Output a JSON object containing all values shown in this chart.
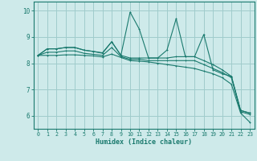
{
  "title": "",
  "xlabel": "Humidex (Indice chaleur)",
  "bg_color": "#ceeaea",
  "grid_color": "#a0cccc",
  "line_color": "#1a7a6e",
  "xlim": [
    -0.5,
    23.5
  ],
  "ylim": [
    5.5,
    10.35
  ],
  "yticks": [
    6,
    7,
    8,
    9,
    10
  ],
  "xticks": [
    0,
    1,
    2,
    3,
    4,
    5,
    6,
    7,
    8,
    9,
    10,
    11,
    12,
    13,
    14,
    15,
    16,
    17,
    18,
    19,
    20,
    21,
    22,
    23
  ],
  "series": [
    [
      8.3,
      8.55,
      8.55,
      8.6,
      8.6,
      8.5,
      8.45,
      8.4,
      8.82,
      8.3,
      9.95,
      9.3,
      8.2,
      8.2,
      8.5,
      9.7,
      8.25,
      8.25,
      9.1,
      7.75,
      7.6,
      7.5,
      6.2,
      6.1
    ],
    [
      8.3,
      8.55,
      8.55,
      8.6,
      8.6,
      8.5,
      8.45,
      8.38,
      8.82,
      8.3,
      8.2,
      8.2,
      8.2,
      8.2,
      8.2,
      8.25,
      8.25,
      8.25,
      8.1,
      7.95,
      7.75,
      7.5,
      6.2,
      6.1
    ],
    [
      8.3,
      8.42,
      8.42,
      8.47,
      8.47,
      8.38,
      8.34,
      8.3,
      8.6,
      8.25,
      8.15,
      8.15,
      8.1,
      8.1,
      8.1,
      8.1,
      8.1,
      8.1,
      7.95,
      7.8,
      7.65,
      7.45,
      6.15,
      6.05
    ],
    [
      8.3,
      8.3,
      8.3,
      8.32,
      8.32,
      8.3,
      8.28,
      8.24,
      8.35,
      8.22,
      8.1,
      8.08,
      8.05,
      8.0,
      7.95,
      7.9,
      7.85,
      7.8,
      7.7,
      7.6,
      7.45,
      7.2,
      6.1,
      5.75
    ]
  ]
}
